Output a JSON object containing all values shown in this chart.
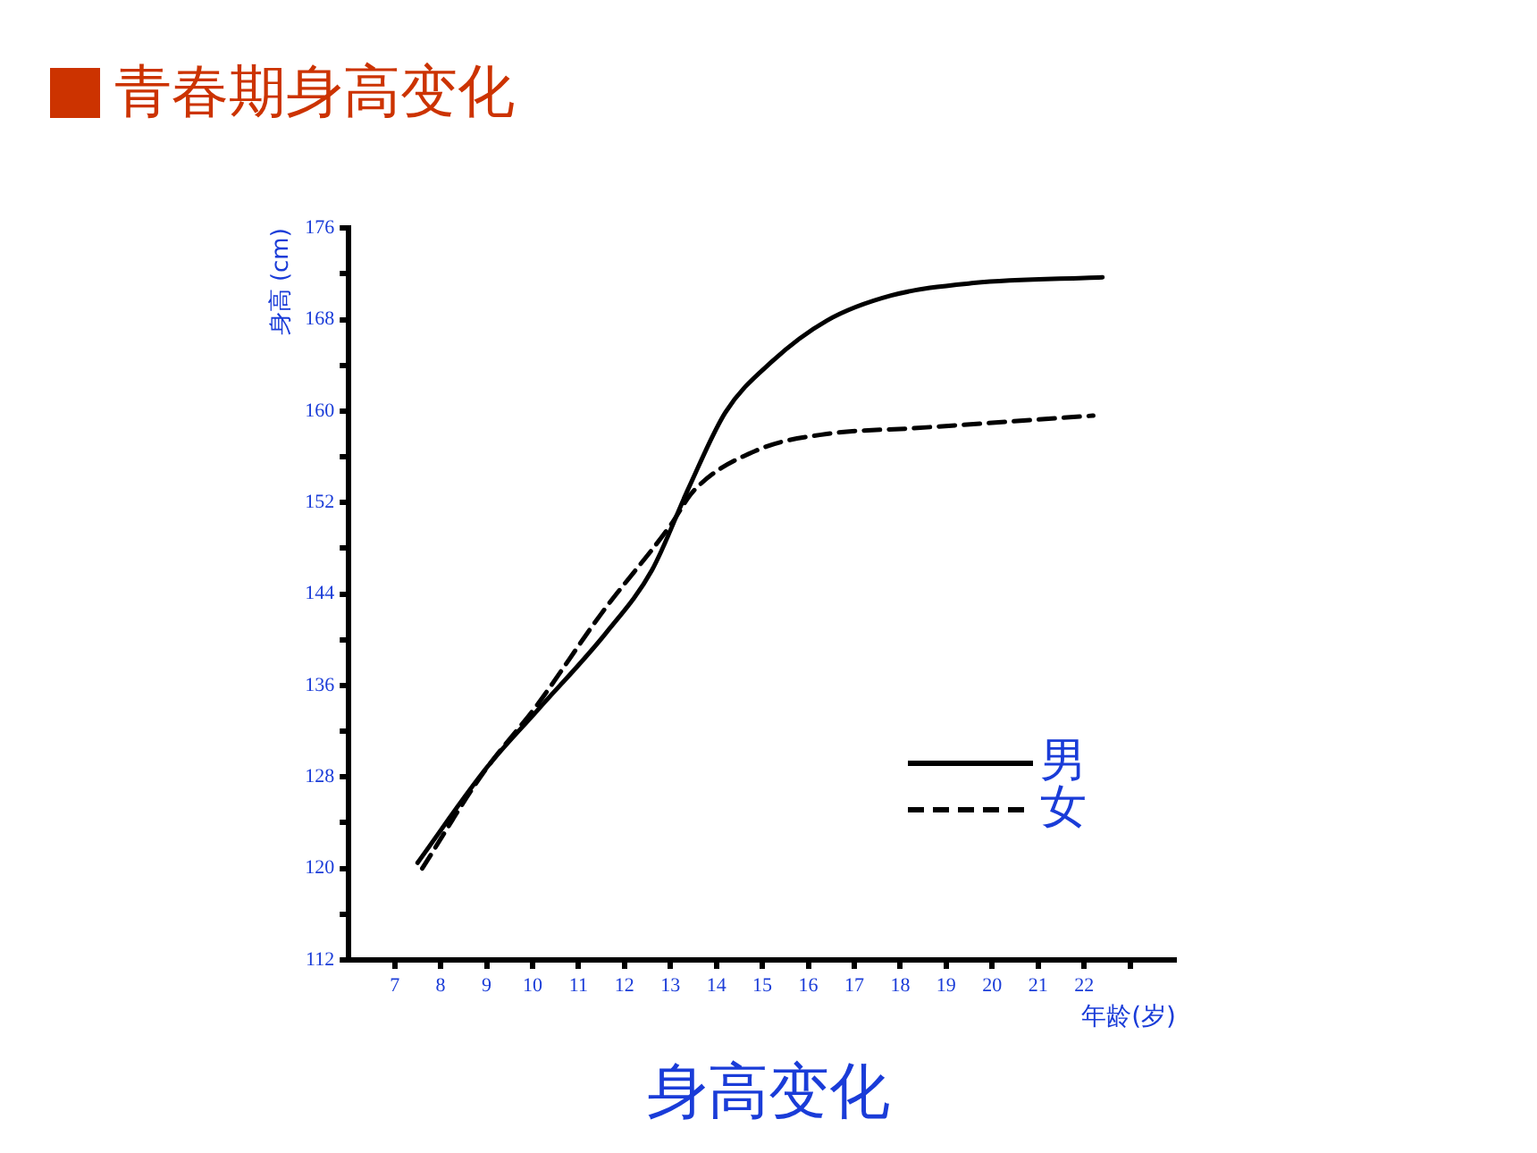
{
  "chart_data": {
    "type": "line",
    "title": "青春期身高变化",
    "xlabel": "年龄(岁)",
    "ylabel": "身高 (cm)",
    "annotations": [
      "身高变化"
    ],
    "xlim": [
      6,
      24
    ],
    "xticks": [
      7,
      8,
      9,
      10,
      11,
      12,
      13,
      14,
      15,
      16,
      17,
      18,
      19,
      20,
      21,
      22,
      {
        "value": 23,
        "label": null
      }
    ],
    "ylim": [
      112,
      176
    ],
    "yticks": [
      112,
      {
        "value": 116,
        "label": null
      },
      120,
      {
        "value": 124,
        "label": null
      },
      128,
      {
        "value": 132,
        "label": null
      },
      136,
      {
        "value": 140,
        "label": null
      },
      144,
      {
        "value": 148,
        "label": null
      },
      152,
      {
        "value": 156,
        "label": null
      },
      160,
      {
        "value": 164,
        "label": null
      },
      168,
      {
        "value": 172,
        "label": null
      },
      176
    ],
    "grid": false,
    "legend": "bottom right",
    "marker": "none",
    "series": [
      {
        "name": "男",
        "color": "#000000",
        "line_style": "solid",
        "x": [
          7.5,
          9.0,
          10.1,
          11.6,
          12.6,
          13.4,
          14.2,
          15.2,
          16.4,
          17.8,
          19.6,
          22.4
        ],
        "values": [
          120.5,
          128.8,
          133.8,
          140.6,
          146.1,
          153.3,
          159.9,
          164.3,
          167.9,
          170.1,
          171.2,
          171.7
        ]
      },
      {
        "name": "女",
        "color": "#000000",
        "line_style": "dashed",
        "x": [
          7.6,
          8.9,
          10.1,
          11.5,
          13.0,
          13.5,
          14.9,
          16.4,
          18.3,
          22.2
        ],
        "values": [
          120.0,
          128.2,
          134.3,
          142.3,
          150.0,
          153.0,
          156.6,
          158.0,
          158.5,
          159.6
        ]
      }
    ]
  }
}
